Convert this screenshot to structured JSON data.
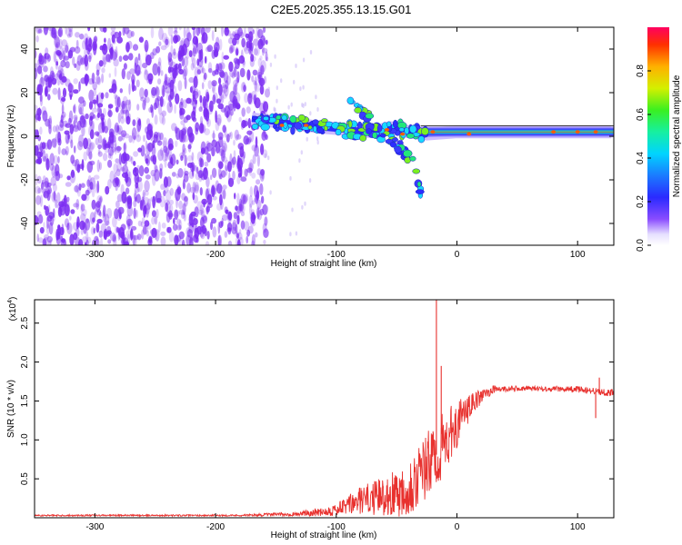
{
  "figure": {
    "title": "C2E5.2025.355.13.15.G01"
  },
  "colors": {
    "axis": "#000000",
    "noise_purple": "#7b2cf2",
    "snr_line": "#e8312e"
  },
  "chart_data": [
    {
      "type": "heatmap",
      "name": "spectrogram",
      "xlabel": "Height of straight line (km)",
      "ylabel": "Frequency (Hz)",
      "xlim": [
        -350,
        130
      ],
      "ylim": [
        -50,
        50
      ],
      "xticks": [
        -300,
        -200,
        -100,
        0,
        100
      ],
      "yticks": [
        -40,
        -20,
        0,
        20,
        40
      ],
      "description_regions": {
        "broadband_noise_x": [
          -350,
          -157
        ],
        "signal_track": [
          {
            "x": -170,
            "y": 8
          },
          {
            "x": -140,
            "y": 6
          },
          {
            "x": -110,
            "y": 4
          },
          {
            "x": -90,
            "y": 3
          },
          {
            "x": -70,
            "y": 2
          },
          {
            "x": -55,
            "y": 4
          },
          {
            "x": -40,
            "y": 2
          },
          {
            "x": -25,
            "y": 1
          },
          {
            "x": 0,
            "y": 2
          },
          {
            "x": 40,
            "y": 2
          },
          {
            "x": 80,
            "y": 2
          },
          {
            "x": 128,
            "y": 2
          }
        ],
        "falling_branch": [
          {
            "x": -75,
            "y": 5
          },
          {
            "x": -60,
            "y": 0
          },
          {
            "x": -45,
            "y": -6
          },
          {
            "x": -35,
            "y": -14
          },
          {
            "x": -30,
            "y": -25
          }
        ],
        "rising_branch": [
          {
            "x": -90,
            "y": 16
          },
          {
            "x": -80,
            "y": 12
          },
          {
            "x": -70,
            "y": 8
          }
        ]
      }
    },
    {
      "type": "colorbar",
      "name": "amplitude-scale",
      "label": "Normalized spectral amplitude",
      "range": [
        0.0,
        1.0
      ],
      "ticks": [
        0.0,
        0.2,
        0.4,
        0.6,
        0.8
      ],
      "tick_labels": [
        "0.0",
        "0.2",
        "0.4",
        "0.6",
        "0.8"
      ]
    },
    {
      "type": "line",
      "name": "snr",
      "xlabel": "Height of straight line (km)",
      "ylabel": "SNR (10 * v/v)",
      "y_multiplier": "(x10",
      "y_multiplier_exp": "4",
      "xlim": [
        -350,
        130
      ],
      "ylim": [
        0.0,
        2.8
      ],
      "xticks": [
        -300,
        -200,
        -100,
        0,
        100
      ],
      "yticks": [
        0.5,
        1.0,
        1.5,
        2.0,
        2.5
      ],
      "ytick_labels": [
        "0.5",
        "1.0",
        "1.5",
        "2.0",
        "2.5"
      ],
      "envelope": [
        {
          "x": -350,
          "base": 0.03,
          "noise": 0.01
        },
        {
          "x": -180,
          "base": 0.03,
          "noise": 0.01
        },
        {
          "x": -130,
          "base": 0.05,
          "noise": 0.03
        },
        {
          "x": -100,
          "base": 0.1,
          "noise": 0.08
        },
        {
          "x": -80,
          "base": 0.22,
          "noise": 0.18
        },
        {
          "x": -60,
          "base": 0.28,
          "noise": 0.25
        },
        {
          "x": -45,
          "base": 0.35,
          "noise": 0.35
        },
        {
          "x": -30,
          "base": 0.55,
          "noise": 0.45
        },
        {
          "x": -15,
          "base": 0.85,
          "noise": 0.45
        },
        {
          "x": 0,
          "base": 1.2,
          "noise": 0.3
        },
        {
          "x": 15,
          "base": 1.5,
          "noise": 0.12
        },
        {
          "x": 30,
          "base": 1.65,
          "noise": 0.05
        },
        {
          "x": 60,
          "base": 1.66,
          "noise": 0.03
        },
        {
          "x": 100,
          "base": 1.65,
          "noise": 0.04
        },
        {
          "x": 130,
          "base": 1.6,
          "noise": 0.05
        }
      ],
      "spikes": [
        {
          "x": -17,
          "y": 2.8
        },
        {
          "x": -13,
          "y": 1.95
        },
        {
          "x": 115,
          "y": 1.28
        },
        {
          "x": 118,
          "y": 1.8
        }
      ]
    }
  ]
}
